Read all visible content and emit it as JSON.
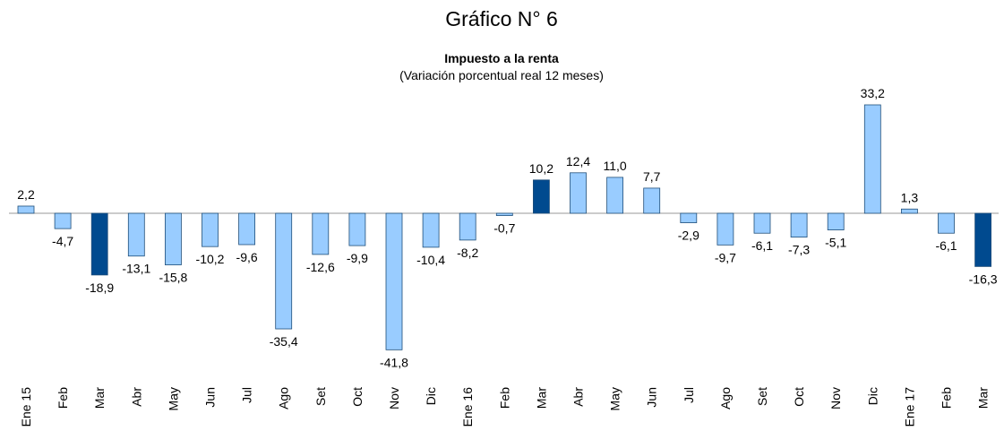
{
  "chart_data": {
    "type": "bar",
    "title": "Gráfico N° 6",
    "subtitle": "Impuesto a la renta",
    "note": "(Variación porcentual real 12 meses)",
    "categories": [
      "Ene 15",
      "Feb",
      "Mar",
      "Abr",
      "May",
      "Jun",
      "Jul",
      "Ago",
      "Set",
      "Oct",
      "Nov",
      "Dic",
      "Ene 16",
      "Feb",
      "Mar",
      "Abr",
      "May",
      "Jun",
      "Jul",
      "Ago",
      "Set",
      "Oct",
      "Nov",
      "Dic",
      "Ene 17",
      "Feb",
      "Mar"
    ],
    "values": [
      2.2,
      -4.7,
      -18.9,
      -13.1,
      -15.8,
      -10.2,
      -9.6,
      -35.4,
      -12.6,
      -9.9,
      -41.8,
      -10.4,
      -8.2,
      -0.7,
      10.2,
      12.4,
      11.0,
      7.7,
      -2.9,
      -9.7,
      -6.1,
      -7.3,
      -5.1,
      33.2,
      1.3,
      -6.1,
      -16.3
    ],
    "value_labels": [
      "2,2",
      "-4,7",
      "-18,9",
      "-13,1",
      "-15,8",
      "-10,2",
      "-9,6",
      "-35,4",
      "-12,6",
      "-9,9",
      "-41,8",
      "-10,4",
      "-8,2",
      "-0,7",
      "10,2",
      "12,4",
      "11,0",
      "7,7",
      "-2,9",
      "-9,7",
      "-6,1",
      "-7,3",
      "-5,1",
      "33,2",
      "1,3",
      "-6,1",
      "-16,3"
    ],
    "colors": [
      "#99ccff",
      "#99ccff",
      "#004a8f",
      "#99ccff",
      "#99ccff",
      "#99ccff",
      "#99ccff",
      "#99ccff",
      "#99ccff",
      "#99ccff",
      "#99ccff",
      "#99ccff",
      "#99ccff",
      "#99ccff",
      "#004a8f",
      "#99ccff",
      "#99ccff",
      "#99ccff",
      "#99ccff",
      "#99ccff",
      "#99ccff",
      "#99ccff",
      "#99ccff",
      "#99ccff",
      "#99ccff",
      "#99ccff",
      "#004a8f"
    ]
  }
}
